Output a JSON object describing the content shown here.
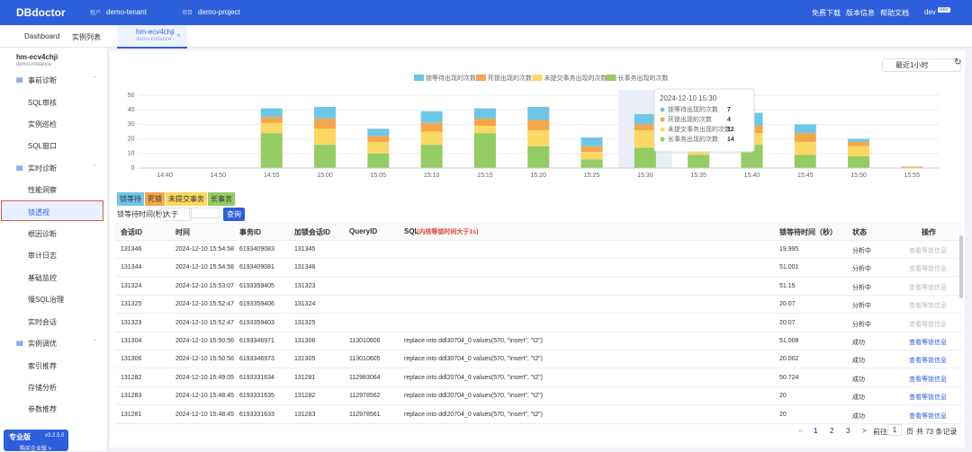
{
  "header": {
    "logo": "DBdoctor",
    "tenant_label": "租户",
    "tenant": "demo-tenant",
    "project_label": "项目",
    "project": "demo-project",
    "links": [
      "免费下载",
      "版本信息",
      "帮助文档"
    ],
    "user": "dev",
    "user_badge": "dev"
  },
  "tabs": [
    "Dashboard",
    "实例列表"
  ],
  "active_tab": {
    "title": "hm-ecv4chji",
    "subtitle": "demo-instance"
  },
  "sidebar": {
    "instance": "hm-ecv4chji",
    "instance_sub": "demo-instance",
    "selected": "锁透视",
    "groups": [
      {
        "title": "事前诊断",
        "items": [
          "SQL审核",
          "实例巡检",
          "SQL窗口"
        ]
      },
      {
        "title": "实时诊断",
        "items": [
          "性能洞察",
          "锁透视",
          "根因诊断",
          "审计日志",
          "基础监控",
          "慢SQL治理",
          "实时会话"
        ]
      },
      {
        "title": "实例调优",
        "items": [
          "索引推荐",
          "存储分析",
          "参数推荐"
        ]
      }
    ],
    "edition": "专业版",
    "version": "v3.2.5.0",
    "buy": "购买企业版 >"
  },
  "time_range": "最近1小时",
  "chart_data": {
    "type": "stacked-bar",
    "categories": [
      "14:40",
      "14:50",
      "14:55",
      "15:00",
      "15:05",
      "15:10",
      "15:15",
      "15:20",
      "15:25",
      "15:30",
      "15:35",
      "15:40",
      "15:45",
      "15:50",
      "15:55"
    ],
    "series": [
      {
        "name": "锁等待出现的次数",
        "color": "#6ec6e6",
        "values": [
          0,
          0,
          6,
          8,
          5,
          8,
          7,
          9,
          6,
          7,
          6,
          9,
          6,
          2,
          0
        ]
      },
      {
        "name": "死锁出现的次数",
        "color": "#f5a54a",
        "values": [
          0,
          0,
          4,
          7,
          4,
          6,
          5,
          7,
          4,
          4,
          5,
          5,
          6,
          3,
          1
        ]
      },
      {
        "name": "未提交事务出现的次数",
        "color": "#fad862",
        "values": [
          0,
          0,
          7,
          11,
          8,
          9,
          5,
          11,
          5,
          12,
          8,
          8,
          9,
          7,
          0
        ]
      },
      {
        "name": "长事务出现的次数",
        "color": "#93cc63",
        "values": [
          0,
          0,
          24,
          16,
          10,
          16,
          24,
          15,
          6,
          14,
          9,
          16,
          9,
          8,
          0
        ]
      }
    ],
    "ylim": [
      0,
      50
    ],
    "yticks": [
      0,
      10,
      20,
      30,
      40,
      50
    ],
    "grid": true,
    "legend": "top",
    "tooltip": {
      "title": "2024-12-10 15:30",
      "hover_index": 9
    }
  },
  "filters": {
    "tags": [
      "锁等待",
      "死锁",
      "未提交事务",
      "长事务"
    ],
    "wait_label": "锁等待时间(秒):",
    "operator": "大于",
    "query": "查询"
  },
  "table": {
    "columns": [
      "会话ID",
      "时间",
      "事务ID",
      "加锁会话ID",
      "QueryID",
      {
        "label": "SQL",
        "note": "(内核等锁时间大于1s)"
      },
      "锁等待时间（秒）",
      "状态",
      "操作"
    ],
    "rows": [
      {
        "cells": [
          "131346",
          "2024-12-10 15:54:58",
          "6193409083",
          "131345",
          null,
          null,
          "19.995",
          "分析中",
          "查看等锁信息"
        ],
        "enabled": false
      },
      {
        "cells": [
          "131344",
          "2024-12-10 15:54:58",
          "6193409081",
          "131346",
          null,
          null,
          "51.001",
          "分析中",
          "查看等锁信息"
        ],
        "enabled": false
      },
      {
        "cells": [
          "131324",
          "2024-12-10 15:53:07",
          "6193359405",
          "131323",
          null,
          null,
          "51.15",
          "分析中",
          "查看等锁信息"
        ],
        "enabled": false
      },
      {
        "cells": [
          "131325",
          "2024-12-10 15:52:47",
          "6193359406",
          "131324",
          null,
          null,
          "20.07",
          "分析中",
          "查看等锁信息"
        ],
        "enabled": false
      },
      {
        "cells": [
          "131323",
          "2024-12-10 15:52:47",
          "6193359403",
          "131325",
          null,
          null,
          "20.07",
          "分析中",
          "查看等锁信息"
        ],
        "enabled": false
      },
      {
        "cells": [
          "131304",
          "2024-12-10 15:50:56",
          "6193346971",
          "131306",
          "113010606",
          "replace into ddl30704_0 values(570, \"insert\", \"t2\")",
          "51.008",
          "成功",
          "查看等锁信息"
        ],
        "enabled": true
      },
      {
        "cells": [
          "131306",
          "2024-12-10 15:50:56",
          "6193346973",
          "131305",
          "113010605",
          "replace into ddl30704_0 values(570, \"insert\", \"t2\")",
          "20.002",
          "成功",
          "查看等锁信息"
        ],
        "enabled": true
      },
      {
        "cells": [
          "131282",
          "2024-12-10 15:49:05",
          "6193331634",
          "131281",
          "112983064",
          "replace into ddl20704_0 values(570, \"insert\", \"t2\")",
          "50.724",
          "成功",
          "查看等锁信息"
        ],
        "enabled": true
      },
      {
        "cells": [
          "131283",
          "2024-12-10 15:48:45",
          "6193331635",
          "131282",
          "112978562",
          "replace into ddl20704_0 values(570, \"insert\", \"t2\")",
          "20",
          "成功",
          "查看等锁信息"
        ],
        "enabled": true
      },
      {
        "cells": [
          "131281",
          "2024-12-10 15:48:45",
          "6193331633",
          "131283",
          "112978561",
          "replace into ddl20704_0 values(570, \"insert\", \"t2\")",
          "20",
          "成功",
          "查看等锁信息"
        ],
        "enabled": true
      }
    ]
  },
  "pagination": {
    "pages": [
      1,
      2,
      3
    ],
    "current": 1,
    "goto": "前往",
    "page_unit": "页",
    "total": "共 73 条记录"
  }
}
